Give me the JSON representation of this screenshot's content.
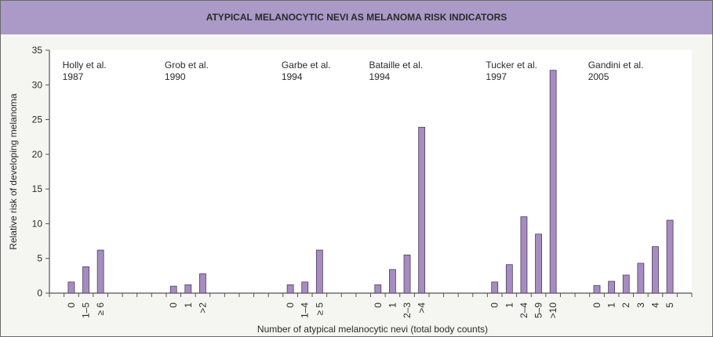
{
  "chart_data": {
    "type": "bar",
    "title": "ATYPICAL MELANOCYTIC NEVI AS MELANOMA RISK INDICATORS",
    "xlabel": "Number of atypical melanocytic nevi (total body counts)",
    "ylabel": "Relative risk of developing melanoma",
    "ylim": [
      0,
      35
    ],
    "yticks": [
      0,
      5,
      10,
      15,
      20,
      25,
      30,
      35
    ],
    "grid": false,
    "bar_color": "#a78cc2",
    "bar_edge_color": "#4a3d5c",
    "total_slots": 44,
    "groups": [
      {
        "name": "Holly et al.",
        "year": "1987",
        "start_slot": 1,
        "categories": [
          "0",
          "1–5",
          "≥ 6"
        ],
        "values": [
          1.6,
          3.8,
          6.2
        ]
      },
      {
        "name": "Grob et al.",
        "year": "1990",
        "start_slot": 8,
        "categories": [
          "0",
          "1",
          ">2"
        ],
        "values": [
          1.0,
          1.2,
          2.8
        ]
      },
      {
        "name": "Garbe et al.",
        "year": "1994",
        "start_slot": 16,
        "categories": [
          "0",
          "1–4",
          "≥ 5"
        ],
        "values": [
          1.2,
          1.6,
          6.2
        ]
      },
      {
        "name": "Bataille et al.",
        "year": "1994",
        "start_slot": 22,
        "categories": [
          "0",
          "1",
          "2–3",
          ">4"
        ],
        "values": [
          1.2,
          3.4,
          5.5,
          23.9
        ]
      },
      {
        "name": "Tucker et al.",
        "year": "1997",
        "start_slot": 30,
        "categories": [
          "0",
          "1",
          "2–4",
          "5–9",
          ">10"
        ],
        "values": [
          1.6,
          4.1,
          11.0,
          8.5,
          32.1
        ]
      },
      {
        "name": "Gandini et al.",
        "year": "2005",
        "start_slot": 37,
        "categories": [
          "0",
          "1",
          "2",
          "3",
          "4",
          "5"
        ],
        "values": [
          1.1,
          1.7,
          2.6,
          4.3,
          6.7,
          10.5
        ]
      }
    ]
  }
}
